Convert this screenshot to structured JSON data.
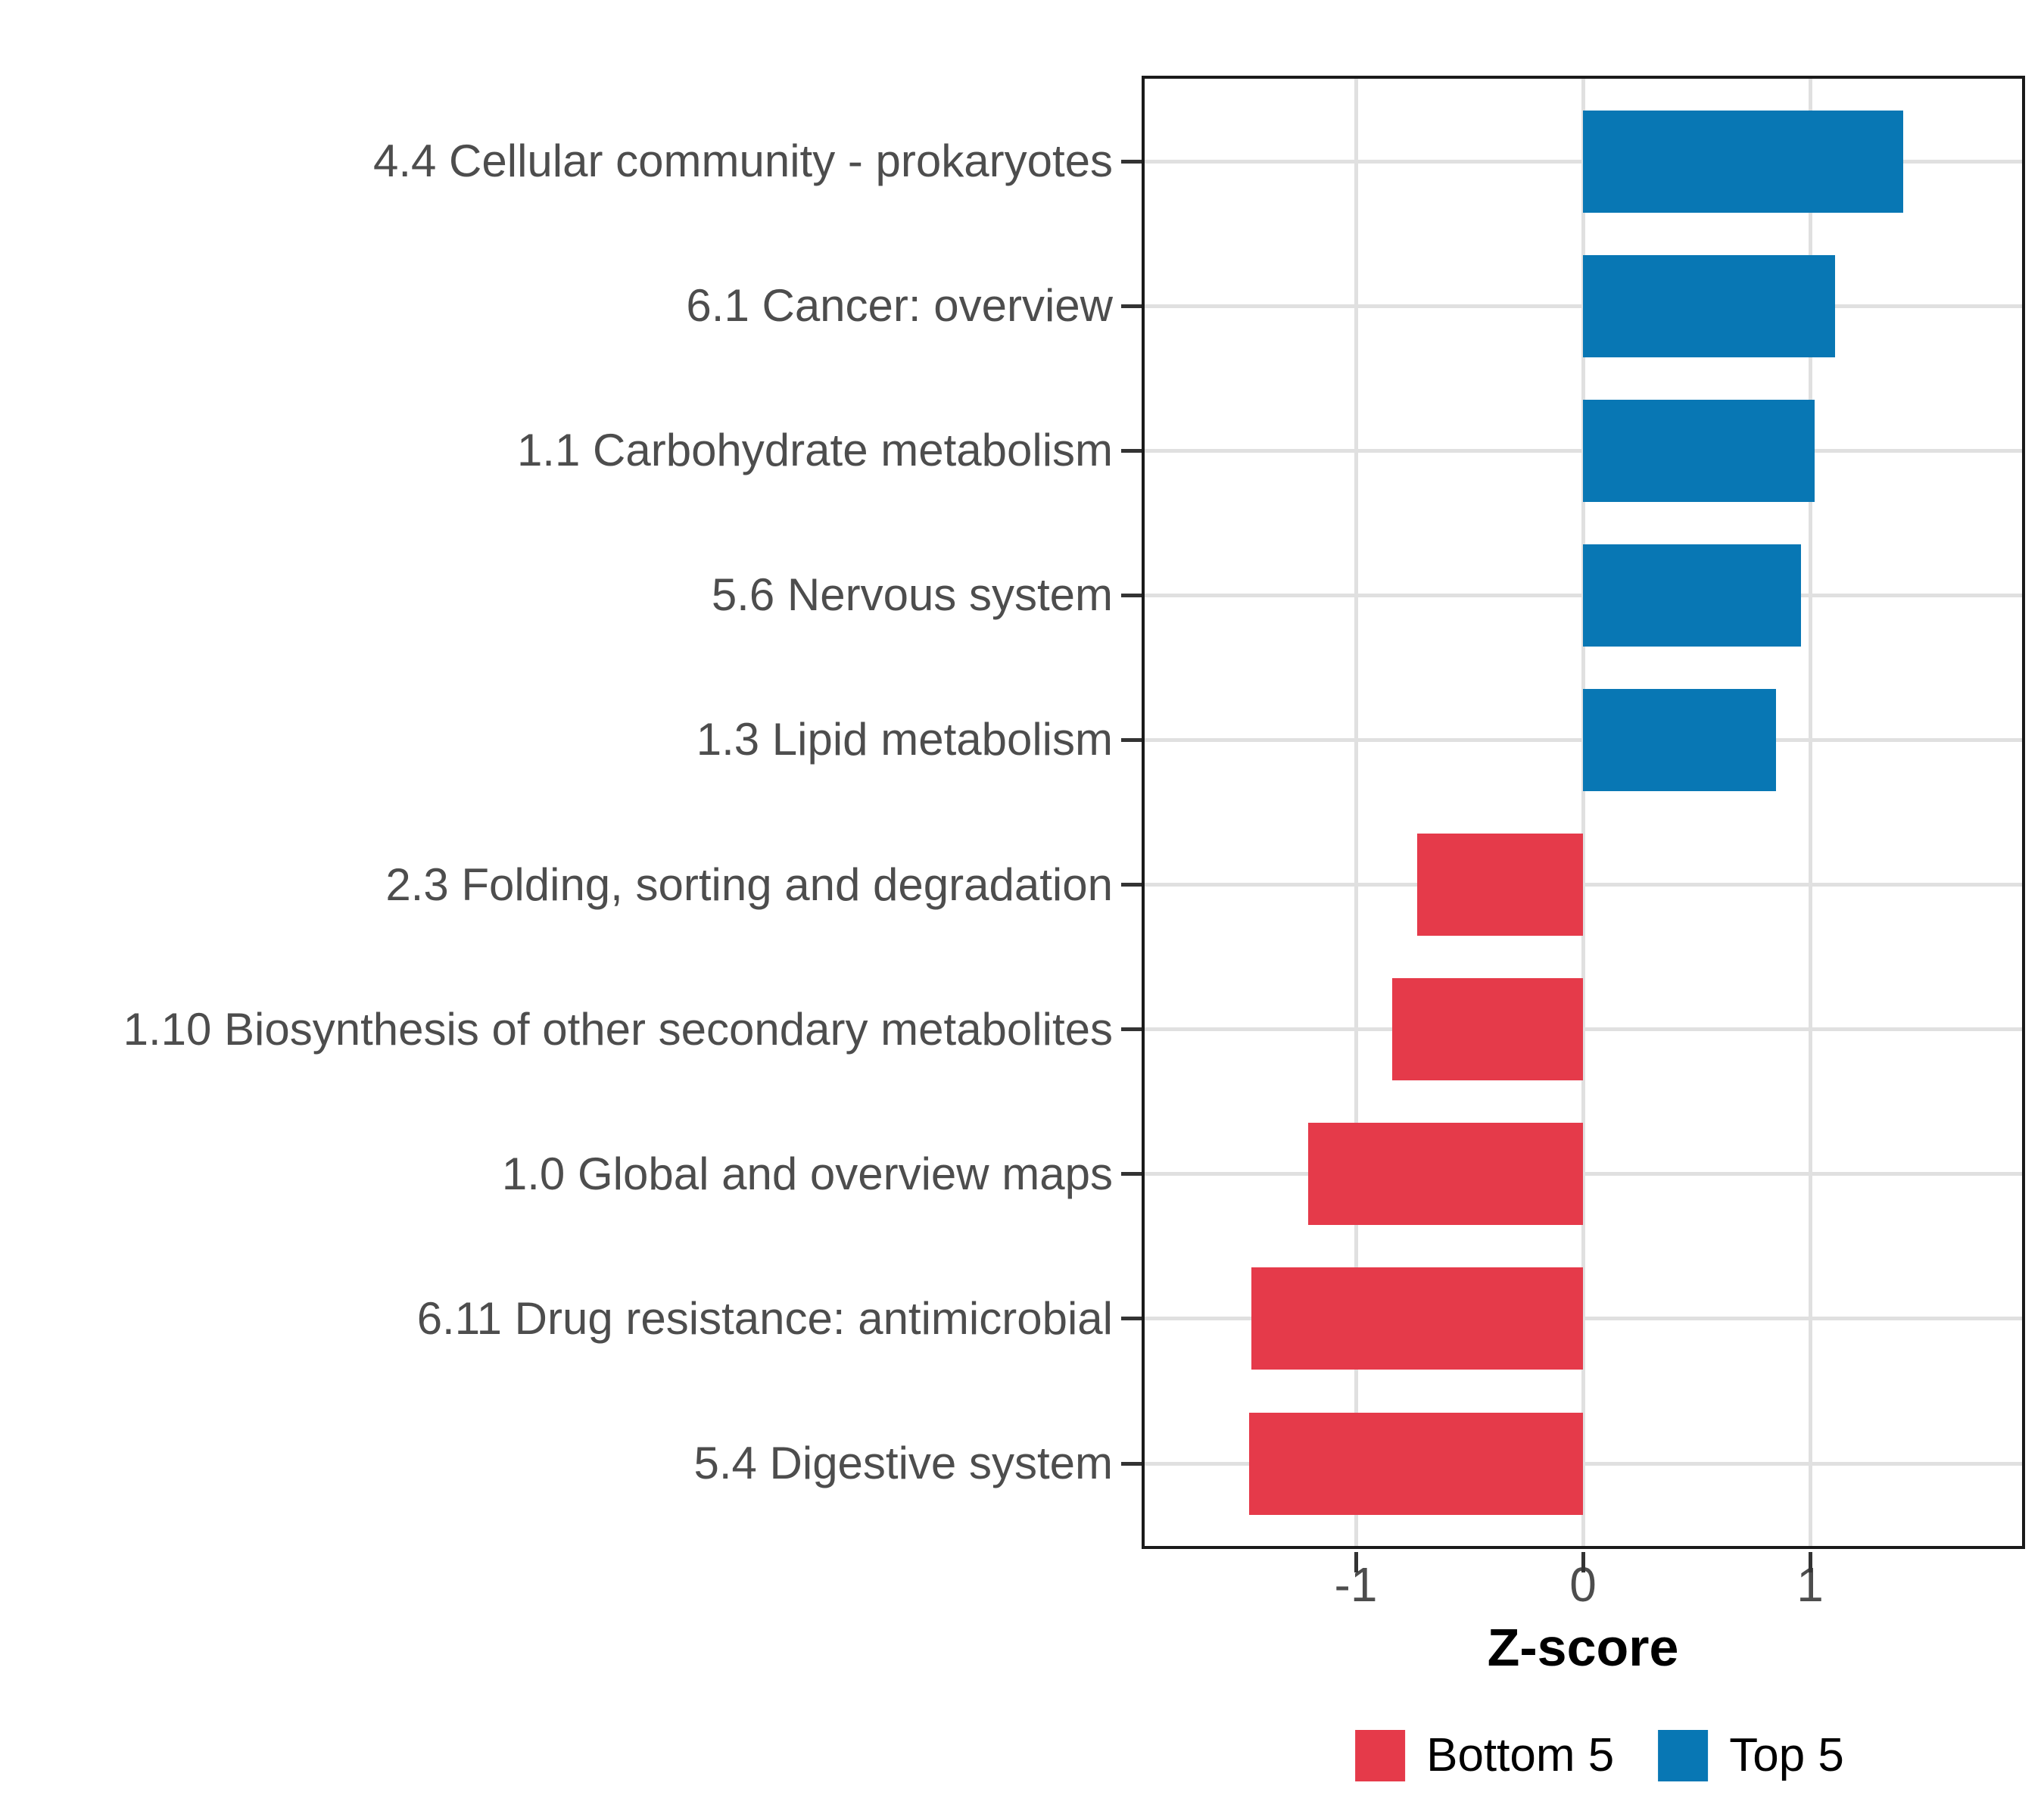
{
  "chart_data": {
    "type": "bar",
    "orientation": "horizontal",
    "title": "",
    "xlabel": "Z-score",
    "categories": [
      "4.4 Cellular community - prokaryotes",
      "6.1 Cancer: overview",
      "1.1 Carbohydrate metabolism",
      "5.6 Nervous system",
      "1.3 Lipid metabolism",
      "2.3 Folding, sorting and degradation",
      "1.10 Biosynthesis of other secondary metabolites",
      "1.0 Global and overview maps",
      "6.11 Drug resistance: antimicrobial",
      "5.4 Digestive system"
    ],
    "values": [
      1.41,
      1.11,
      1.02,
      0.96,
      0.85,
      -0.73,
      -0.84,
      -1.21,
      -1.46,
      -1.47
    ],
    "groups": [
      "Top 5",
      "Top 5",
      "Top 5",
      "Top 5",
      "Top 5",
      "Bottom 5",
      "Bottom 5",
      "Bottom 5",
      "Bottom 5",
      "Bottom 5"
    ],
    "xticks": [
      "-1",
      "0",
      "1"
    ],
    "xtick_values": [
      -1,
      0,
      1
    ],
    "xlim": [
      -1.94,
      1.95
    ],
    "grid": "major gridlines only, light gray, x at ticks and y at each category",
    "legend": {
      "position": "bottom",
      "entries": [
        {
          "label": "Bottom 5",
          "color": "#E53A4A"
        },
        {
          "label": "Top 5",
          "color": "#0877B4"
        }
      ]
    },
    "colors": {
      "bar_positive": "#0877B4",
      "bar_negative": "#E53A4A",
      "gridline": "#E0E0E0",
      "panel_border": "#1A1A1A",
      "tick_mark": "#333333",
      "axis_text": "#4D4D4D"
    }
  }
}
